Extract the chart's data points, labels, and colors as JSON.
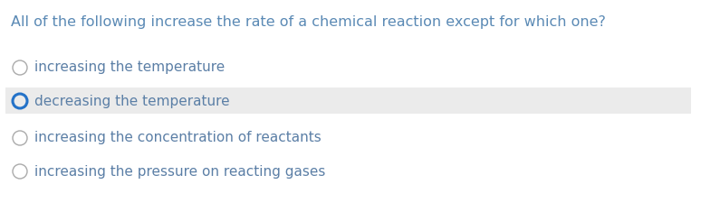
{
  "question": "All of the following increase the rate of a chemical reaction except for which one?",
  "options": [
    "increasing the temperature",
    "decreasing the temperature",
    "increasing the concentration of reactants",
    "increasing the pressure on reacting gases"
  ],
  "selected_index": 1,
  "question_color": "#5b8ab5",
  "option_text_color": "#5b7fa6",
  "selected_bg_color": "#ebebeb",
  "background_color": "#ffffff",
  "circle_color_default": "#aaaaaa",
  "circle_color_selected": "#2472c8",
  "question_fontsize": 11.5,
  "option_fontsize": 11.0
}
